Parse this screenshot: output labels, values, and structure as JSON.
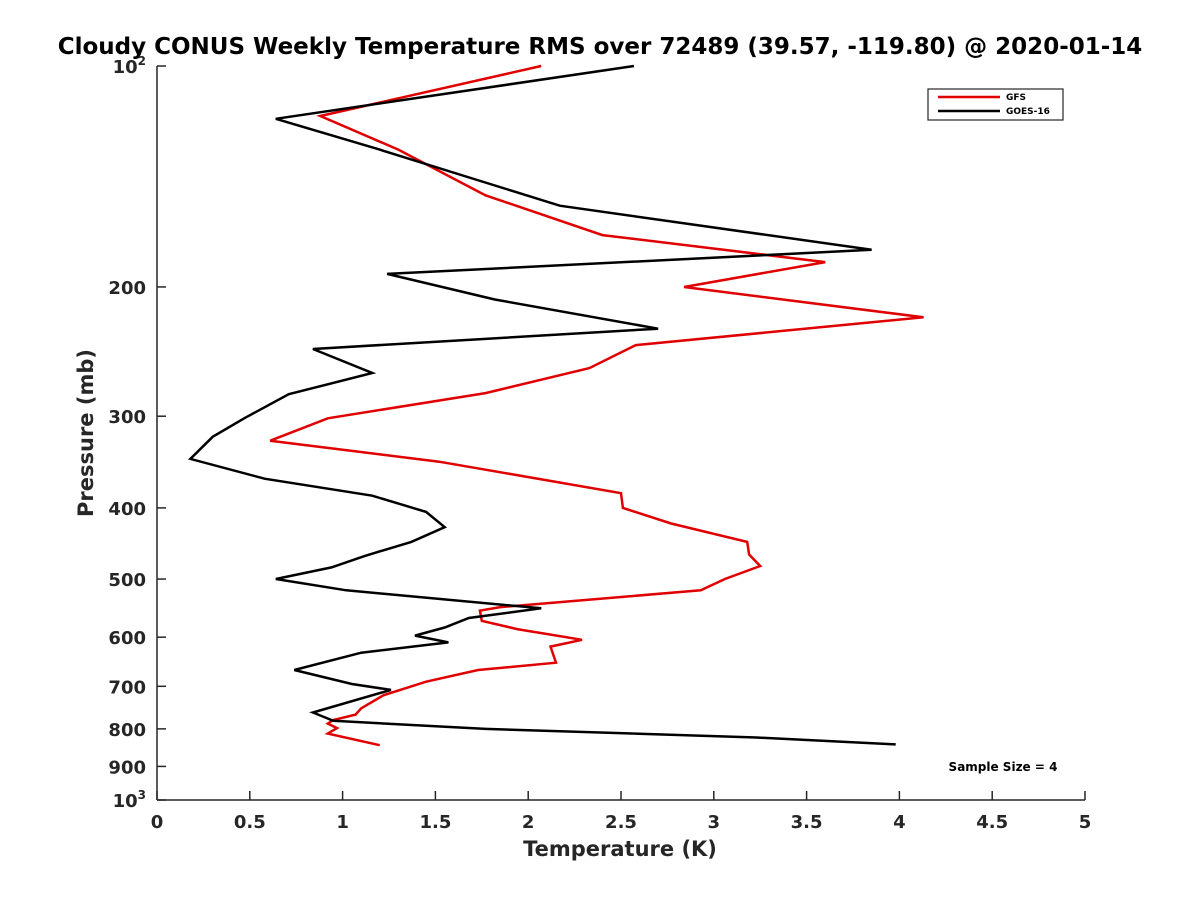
{
  "chart_data": {
    "type": "line",
    "title": "Cloudy CONUS Weekly Temperature RMS over 72489 (39.57, -119.80) @ 2020-01-14",
    "xlabel": "Temperature (K)",
    "ylabel": "Pressure (mb)",
    "xlim": [
      0,
      5
    ],
    "ylim": [
      100,
      1000
    ],
    "y_scale": "log",
    "y_reversed": true,
    "x_ticks": [
      "0",
      "0.5",
      "1",
      "1.5",
      "2",
      "2.5",
      "3",
      "3.5",
      "4",
      "4.5",
      "5"
    ],
    "y_ticks": [
      {
        "value": 100,
        "label": "10",
        "exp": "2"
      },
      {
        "value": 200,
        "label": "200"
      },
      {
        "value": 300,
        "label": "300"
      },
      {
        "value": 400,
        "label": "400"
      },
      {
        "value": 500,
        "label": "500"
      },
      {
        "value": 600,
        "label": "600"
      },
      {
        "value": 700,
        "label": "700"
      },
      {
        "value": 800,
        "label": "800"
      },
      {
        "value": 900,
        "label": "900"
      },
      {
        "value": 1000,
        "label": "10",
        "exp": "3"
      }
    ],
    "grid": false,
    "legend_position": "top-right",
    "annotation": "Sample Size = 4",
    "series": [
      {
        "name": "GFS",
        "color": "#e00000",
        "points": [
          [
            2.07,
            100
          ],
          [
            0.88,
            117
          ],
          [
            1.3,
            130
          ],
          [
            1.77,
            150
          ],
          [
            2.4,
            170
          ],
          [
            3.6,
            185
          ],
          [
            2.84,
            200
          ],
          [
            4.13,
            220
          ],
          [
            2.58,
            240
          ],
          [
            2.33,
            258
          ],
          [
            1.77,
            279
          ],
          [
            0.92,
            302
          ],
          [
            0.61,
            324
          ],
          [
            1.52,
            346
          ],
          [
            2.08,
            366
          ],
          [
            2.5,
            382
          ],
          [
            2.51,
            400
          ],
          [
            2.77,
            420
          ],
          [
            3.18,
            445
          ],
          [
            3.19,
            463
          ],
          [
            3.25,
            480
          ],
          [
            3.06,
            500
          ],
          [
            2.93,
            518
          ],
          [
            1.85,
            546
          ],
          [
            1.74,
            552
          ],
          [
            1.75,
            570
          ],
          [
            1.94,
            585
          ],
          [
            2.29,
            605
          ],
          [
            2.12,
            618
          ],
          [
            2.15,
            650
          ],
          [
            1.73,
            665
          ],
          [
            1.45,
            690
          ],
          [
            1.22,
            720
          ],
          [
            1.1,
            750
          ],
          [
            1.07,
            765
          ],
          [
            0.95,
            778
          ],
          [
            0.92,
            787
          ],
          [
            0.97,
            798
          ],
          [
            0.92,
            812
          ],
          [
            1.2,
            842
          ]
        ]
      },
      {
        "name": "GOES-16",
        "color": "#000000",
        "points": [
          [
            2.57,
            100
          ],
          [
            0.64,
            118
          ],
          [
            1.2,
            130
          ],
          [
            2.17,
            155
          ],
          [
            3.85,
            178
          ],
          [
            1.24,
            192
          ],
          [
            1.82,
            208
          ],
          [
            2.7,
            228
          ],
          [
            0.84,
            243
          ],
          [
            1.16,
            262
          ],
          [
            0.71,
            280
          ],
          [
            0.47,
            302
          ],
          [
            0.3,
            320
          ],
          [
            0.18,
            343
          ],
          [
            0.58,
            365
          ],
          [
            1.16,
            385
          ],
          [
            1.45,
            405
          ],
          [
            1.55,
            425
          ],
          [
            1.37,
            445
          ],
          [
            1.12,
            465
          ],
          [
            0.94,
            482
          ],
          [
            0.64,
            500
          ],
          [
            1.02,
            518
          ],
          [
            2.07,
            548
          ],
          [
            1.68,
            565
          ],
          [
            1.55,
            582
          ],
          [
            1.39,
            597
          ],
          [
            1.57,
            610
          ],
          [
            1.1,
            630
          ],
          [
            0.74,
            665
          ],
          [
            1.05,
            695
          ],
          [
            1.26,
            708
          ],
          [
            0.84,
            760
          ],
          [
            0.95,
            780
          ],
          [
            1.77,
            800
          ],
          [
            3.23,
            822
          ],
          [
            3.98,
            840
          ]
        ]
      }
    ]
  }
}
